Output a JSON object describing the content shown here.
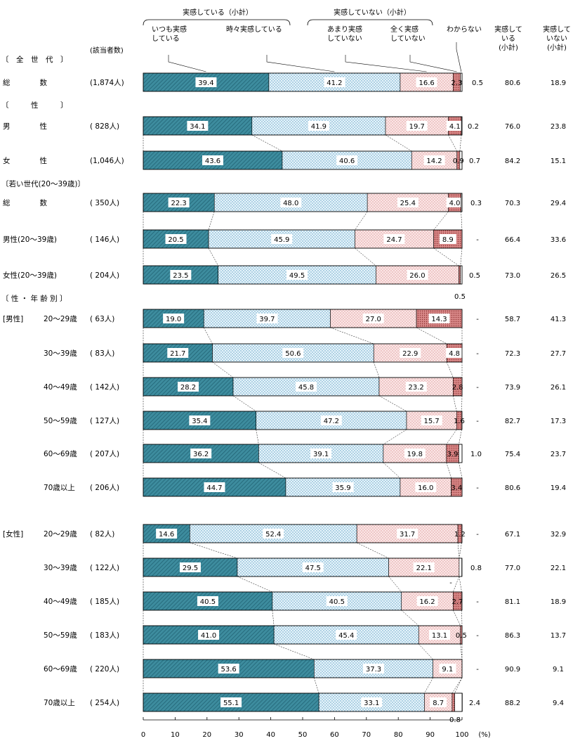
{
  "chart_data": {
    "type": "bar",
    "stacked": true,
    "orientation": "horizontal",
    "legend": {
      "group1": "実感している（小計）",
      "group2": "実感していない（小計）",
      "items": [
        "いつも実感\nしている",
        "時々実感している",
        "あまり実感\nしていない",
        "全く実感\nしていない",
        "わからない"
      ]
    },
    "col_headers": {
      "count": "(該当者数)",
      "sub1": "実感して\nいる\n(小計)",
      "sub2": "実感して\nいない\n(小計)"
    },
    "series": [
      {
        "name": "いつも実感している",
        "color": "#3d8c9e"
      },
      {
        "name": "時々実感している",
        "color": "#e4f3fa"
      },
      {
        "name": "あまり実感していない",
        "color": "#fbe5e5"
      },
      {
        "name": "全く実感していない",
        "color": "#d98a8a"
      },
      {
        "name": "わからない",
        "color": "#ffffff"
      }
    ],
    "section_headers": [
      {
        "text": "〔　全　世　代　〕",
        "before_row": 0
      },
      {
        "text": "〔　　　性　　　〕",
        "before_row": 1
      },
      {
        "text": "〔若い世代(20～39歳)〕",
        "before_row": 3
      },
      {
        "text": "〔 性 ・ 年 齢 別 〕",
        "before_row": 6
      }
    ],
    "group_labels": [
      {
        "text": "[男性]",
        "row": 6
      },
      {
        "text": "[女性]",
        "row": 12
      }
    ],
    "rows": [
      {
        "label": "総　　　　数",
        "n": "(1,874人)",
        "values": [
          39.4,
          41.2,
          16.6,
          2.3,
          0.5
        ],
        "labels": [
          "39.4",
          "41.2",
          "16.6",
          "2.3",
          "0.5"
        ],
        "sub1": "80.6",
        "sub2": "18.9"
      },
      {
        "label": "男　　　　性",
        "n": "(  828人)",
        "values": [
          34.1,
          41.9,
          19.7,
          4.1,
          0.2
        ],
        "labels": [
          "34.1",
          "41.9",
          "19.7",
          "4.1",
          "0.2"
        ],
        "sub1": "76.0",
        "sub2": "23.8"
      },
      {
        "label": "女　　　　性",
        "n": "(1,046人)",
        "values": [
          43.6,
          40.6,
          14.2,
          0.9,
          0.7
        ],
        "labels": [
          "43.6",
          "40.6",
          "14.2",
          "0.9",
          "0.7"
        ],
        "sub1": "84.2",
        "sub2": "15.1"
      },
      {
        "label": "総　　　　数",
        "n": "(  350人)",
        "values": [
          22.3,
          48.0,
          25.4,
          4.0,
          0.3
        ],
        "labels": [
          "22.3",
          "48.0",
          "25.4",
          "4.0",
          "0.3"
        ],
        "sub1": "70.3",
        "sub2": "29.4"
      },
      {
        "label": "男性(20～39歳)",
        "n": "(  146人)",
        "values": [
          20.5,
          45.9,
          24.7,
          8.9,
          0
        ],
        "labels": [
          "20.5",
          "45.9",
          "24.7",
          "8.9",
          "-"
        ],
        "sub1": "66.4",
        "sub2": "33.6"
      },
      {
        "label": "女性(20～39歳)",
        "n": "(  204人)",
        "values": [
          23.5,
          49.5,
          26.0,
          0.5,
          0.5
        ],
        "labels": [
          "23.5",
          "49.5",
          "26.0",
          "0.5",
          "0.5"
        ],
        "sub1": "73.0",
        "sub2": "26.5"
      },
      {
        "label": "20～29歳",
        "n": "(   63人)",
        "values": [
          19.0,
          39.7,
          27.0,
          14.3,
          0
        ],
        "labels": [
          "19.0",
          "39.7",
          "27.0",
          "14.3",
          "-"
        ],
        "sub1": "58.7",
        "sub2": "41.3"
      },
      {
        "label": "30～39歳",
        "n": "(   83人)",
        "values": [
          21.7,
          50.6,
          22.9,
          4.8,
          0
        ],
        "labels": [
          "21.7",
          "50.6",
          "22.9",
          "4.8",
          "-"
        ],
        "sub1": "72.3",
        "sub2": "27.7"
      },
      {
        "label": "40～49歳",
        "n": "(  142人)",
        "values": [
          28.2,
          45.8,
          23.2,
          2.8,
          0
        ],
        "labels": [
          "28.2",
          "45.8",
          "23.2",
          "2.8",
          "-"
        ],
        "sub1": "73.9",
        "sub2": "26.1"
      },
      {
        "label": "50～59歳",
        "n": "(  127人)",
        "values": [
          35.4,
          47.2,
          15.7,
          1.6,
          0
        ],
        "labels": [
          "35.4",
          "47.2",
          "15.7",
          "1.6",
          "-"
        ],
        "sub1": "82.7",
        "sub2": "17.3"
      },
      {
        "label": "60～69歳",
        "n": "(  207人)",
        "values": [
          36.2,
          39.1,
          19.8,
          3.9,
          1.0
        ],
        "labels": [
          "36.2",
          "39.1",
          "19.8",
          "3.9",
          "1.0"
        ],
        "sub1": "75.4",
        "sub2": "23.7"
      },
      {
        "label": "70歳以上",
        "n": "(  206人)",
        "values": [
          44.7,
          35.9,
          16.0,
          3.4,
          0
        ],
        "labels": [
          "44.7",
          "35.9",
          "16.0",
          "3.4",
          "-"
        ],
        "sub1": "80.6",
        "sub2": "19.4"
      },
      {
        "label": "20～29歳",
        "n": "(   82人)",
        "values": [
          14.6,
          52.4,
          31.7,
          1.2,
          0
        ],
        "labels": [
          "14.6",
          "52.4",
          "31.7",
          "1.2",
          "-"
        ],
        "sub1": "67.1",
        "sub2": "32.9"
      },
      {
        "label": "30～39歳",
        "n": "(  122人)",
        "values": [
          29.5,
          47.5,
          22.1,
          0,
          0.8
        ],
        "labels": [
          "29.5",
          "47.5",
          "22.1",
          "-",
          "0.8"
        ],
        "sub1": "77.0",
        "sub2": "22.1"
      },
      {
        "label": "40～49歳",
        "n": "(  185人)",
        "values": [
          40.5,
          40.5,
          16.2,
          2.7,
          0
        ],
        "labels": [
          "40.5",
          "40.5",
          "16.2",
          "2.7",
          "-"
        ],
        "sub1": "81.1",
        "sub2": "18.9"
      },
      {
        "label": "50～59歳",
        "n": "(  183人)",
        "values": [
          41.0,
          45.4,
          13.1,
          0.5,
          0
        ],
        "labels": [
          "41.0",
          "45.4",
          "13.1",
          "0.5",
          "-"
        ],
        "sub1": "86.3",
        "sub2": "13.7"
      },
      {
        "label": "60～69歳",
        "n": "(  220人)",
        "values": [
          53.6,
          37.3,
          9.1,
          0,
          0
        ],
        "labels": [
          "53.6",
          "37.3",
          "9.1",
          "",
          "-"
        ],
        "sub1": "90.9",
        "sub2": "9.1"
      },
      {
        "label": "70歳以上",
        "n": "(  254人)",
        "values": [
          55.1,
          33.1,
          8.7,
          0.8,
          2.4
        ],
        "labels": [
          "55.1",
          "33.1",
          "8.7",
          "0.8",
          "2.4"
        ],
        "sub1": "88.2",
        "sub2": "9.4"
      }
    ],
    "xaxis": {
      "min": 0,
      "max": 100,
      "ticks": [
        0,
        10,
        20,
        30,
        40,
        50,
        60,
        70,
        80,
        90,
        100
      ],
      "unit": "(%)"
    }
  }
}
